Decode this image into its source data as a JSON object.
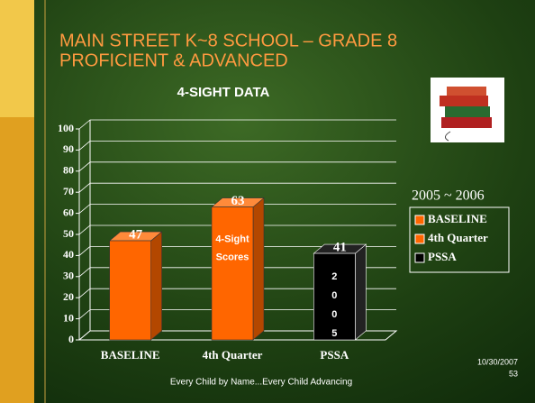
{
  "slide": {
    "title_lines": [
      "MAIN STREET K~8 SCHOOL – GRADE 8",
      "PROFICIENT & ADVANCED"
    ],
    "footer": "Every Child by Name...Every Child Advancing",
    "date": "10/30/2007",
    "page": "53"
  },
  "chart_data": {
    "type": "bar",
    "title": "4-SIGHT DATA",
    "categories": [
      "BASELINE",
      "4th Quarter",
      "PSSA"
    ],
    "values": [
      47,
      63,
      41
    ],
    "colors": [
      "#ff6600",
      "#ff6600",
      "#000000"
    ],
    "ylim": [
      0,
      100
    ],
    "yticks": [
      0,
      10,
      20,
      30,
      40,
      50,
      60,
      70,
      80,
      90,
      100
    ],
    "grid": true,
    "legend_title": "2005 ~ 2006",
    "annotations": [
      {
        "lines": [
          "4-Sight",
          "Scores"
        ]
      },
      {
        "lines": [
          "2",
          "0",
          "0",
          "5"
        ]
      }
    ]
  }
}
